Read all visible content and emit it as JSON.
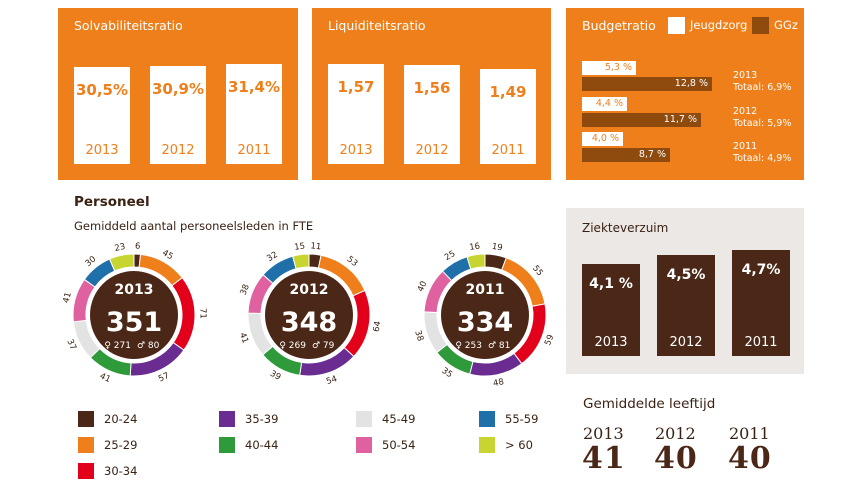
{
  "colors": {
    "orange": "#ef7f1a",
    "brown": "#4a2716",
    "white": "#ffffff",
    "grey_panel": "#ebe8e5"
  },
  "solvabiliteit": {
    "title": "Solvabiliteitsratio",
    "bars": [
      {
        "year": "2013",
        "label": "30,5%",
        "value": 30.5
      },
      {
        "year": "2012",
        "label": "30,9%",
        "value": 30.9
      },
      {
        "year": "2011",
        "label": "31,4%",
        "value": 31.4
      }
    ]
  },
  "liquiditeit": {
    "title": "Liquiditeitsratio",
    "bars": [
      {
        "year": "2013",
        "label": "1,57",
        "value": 1.57
      },
      {
        "year": "2012",
        "label": "1,56",
        "value": 1.56
      },
      {
        "year": "2011",
        "label": "1,49",
        "value": 1.49
      }
    ]
  },
  "budget": {
    "title": "Budgetratio",
    "legend": [
      {
        "label": "Jeugdzorg",
        "color": "#ffffff"
      },
      {
        "label": "GGz",
        "color": "#8f4a0e"
      }
    ],
    "rows": [
      {
        "year": "2013",
        "totaal": "Totaal: 6,9%",
        "jeugd_label": "5,3 %",
        "jeugd": 5.3,
        "ggz_label": "12,8 %",
        "ggz": 12.8
      },
      {
        "year": "2012",
        "totaal": "Totaal: 5,9%",
        "jeugd_label": "4,4 %",
        "jeugd": 4.4,
        "ggz_label": "11,7 %",
        "ggz": 11.7
      },
      {
        "year": "2011",
        "totaal": "Totaal: 4,9%",
        "jeugd_label": "4,0 %",
        "jeugd": 4.0,
        "ggz_label": "8,7 %",
        "ggz": 8.7
      }
    ]
  },
  "personeel": {
    "title": "Personeel",
    "subtitle": "Gemiddeld aantal personeelsleden in FTE",
    "female_symbol": "♀",
    "male_symbol": "♂",
    "legend": [
      {
        "label": "20-24",
        "color": "#4a2716"
      },
      {
        "label": "25-29",
        "color": "#ef7f1a"
      },
      {
        "label": "30-34",
        "color": "#e2001a"
      },
      {
        "label": "35-39",
        "color": "#6a2c91"
      },
      {
        "label": "40-44",
        "color": "#2e9a39"
      },
      {
        "label": "45-49",
        "color": "#e3e3e3"
      },
      {
        "label": "50-54",
        "color": "#e0619f"
      },
      {
        "label": "55-59",
        "color": "#1f6fa8"
      },
      {
        "label": "> 60",
        "color": "#c8d530"
      }
    ]
  },
  "chart_data": [
    {
      "type": "pie",
      "year": "2013",
      "total": "351",
      "female": "271",
      "male": "80",
      "categories": [
        "20-24",
        "25-29",
        "30-34",
        "35-39",
        "40-44",
        "45-49",
        "50-54",
        "55-59",
        "> 60"
      ],
      "values": [
        6,
        45,
        71,
        57,
        41,
        37,
        41,
        30,
        23
      ]
    },
    {
      "type": "pie",
      "year": "2012",
      "total": "348",
      "female": "269",
      "male": "79",
      "categories": [
        "20-24",
        "25-29",
        "30-34",
        "35-39",
        "40-44",
        "45-49",
        "50-54",
        "55-59",
        "> 60"
      ],
      "values": [
        11,
        53,
        64,
        54,
        39,
        41,
        38,
        32,
        15
      ]
    },
    {
      "type": "pie",
      "year": "2011",
      "total": "334",
      "female": "253",
      "male": "81",
      "categories": [
        "20-24",
        "25-29",
        "30-34",
        "35-39",
        "40-44",
        "45-49",
        "50-54",
        "55-59",
        "> 60"
      ],
      "values": [
        19,
        55,
        59,
        48,
        35,
        38,
        40,
        25,
        16
      ]
    }
  ],
  "ziekteverzuim": {
    "title": "Ziekteverzuim",
    "bars": [
      {
        "year": "2013",
        "label": "4,1 %",
        "value": 4.1
      },
      {
        "year": "2012",
        "label": "4,5%",
        "value": 4.5
      },
      {
        "year": "2011",
        "label": "4,7%",
        "value": 4.7
      }
    ]
  },
  "leeftijd": {
    "title": "Gemiddelde leeftijd",
    "items": [
      {
        "year": "2013",
        "value": "41"
      },
      {
        "year": "2012",
        "value": "40"
      },
      {
        "year": "2011",
        "value": "40"
      }
    ]
  }
}
